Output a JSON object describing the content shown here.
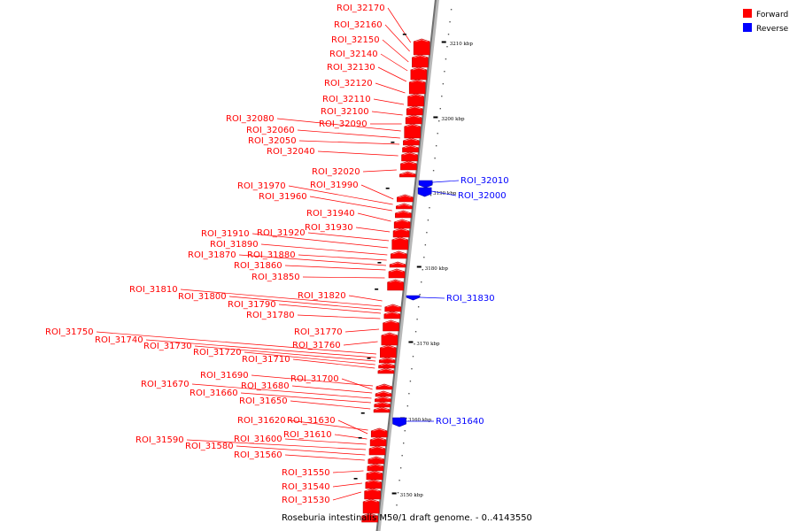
{
  "caption": "Roseburia intestinalis M50/1 draft genome. - 0..4143550",
  "legend": [
    {
      "label": "Forward",
      "color": "#ff0000"
    },
    {
      "label": "Reverse",
      "color": "#0000ff"
    }
  ],
  "ticks": [
    {
      "kbp": 3210,
      "label": "3210 kbp"
    },
    {
      "kbp": 3200,
      "label": "3200 kbp"
    },
    {
      "kbp": 3190,
      "label": "3190 kbp"
    },
    {
      "kbp": 3180,
      "label": "3180 kbp"
    },
    {
      "kbp": 3170,
      "label": "3170 kbp"
    },
    {
      "kbp": 3160,
      "label": "3160 kbp"
    },
    {
      "kbp": 3150,
      "label": "3150 kbp"
    }
  ],
  "features": [
    {
      "name": "ROI_32170",
      "strand": "forward"
    },
    {
      "name": "ROI_32160",
      "strand": "forward"
    },
    {
      "name": "ROI_32150",
      "strand": "forward"
    },
    {
      "name": "ROI_32140",
      "strand": "forward"
    },
    {
      "name": "ROI_32130",
      "strand": "forward"
    },
    {
      "name": "ROI_32120",
      "strand": "forward"
    },
    {
      "name": "ROI_32110",
      "strand": "forward"
    },
    {
      "name": "ROI_32100",
      "strand": "forward"
    },
    {
      "name": "ROI_32090",
      "strand": "forward"
    },
    {
      "name": "ROI_32080",
      "strand": "forward"
    },
    {
      "name": "ROI_32060",
      "strand": "forward"
    },
    {
      "name": "ROI_32050",
      "strand": "forward"
    },
    {
      "name": "ROI_32040",
      "strand": "forward"
    },
    {
      "name": "ROI_32020",
      "strand": "forward"
    },
    {
      "name": "ROI_32010",
      "strand": "reverse"
    },
    {
      "name": "ROI_32000",
      "strand": "reverse"
    },
    {
      "name": "ROI_31990",
      "strand": "forward"
    },
    {
      "name": "ROI_31970",
      "strand": "forward"
    },
    {
      "name": "ROI_31960",
      "strand": "forward"
    },
    {
      "name": "ROI_31940",
      "strand": "forward"
    },
    {
      "name": "ROI_31930",
      "strand": "forward"
    },
    {
      "name": "ROI_31920",
      "strand": "forward"
    },
    {
      "name": "ROI_31910",
      "strand": "forward"
    },
    {
      "name": "ROI_31890",
      "strand": "forward"
    },
    {
      "name": "ROI_31880",
      "strand": "forward"
    },
    {
      "name": "ROI_31870",
      "strand": "forward"
    },
    {
      "name": "ROI_31860",
      "strand": "forward"
    },
    {
      "name": "ROI_31850",
      "strand": "forward"
    },
    {
      "name": "ROI_31830",
      "strand": "reverse"
    },
    {
      "name": "ROI_31820",
      "strand": "forward"
    },
    {
      "name": "ROI_31810",
      "strand": "forward"
    },
    {
      "name": "ROI_31800",
      "strand": "forward"
    },
    {
      "name": "ROI_31790",
      "strand": "forward"
    },
    {
      "name": "ROI_31780",
      "strand": "forward"
    },
    {
      "name": "ROI_31770",
      "strand": "forward"
    },
    {
      "name": "ROI_31760",
      "strand": "forward"
    },
    {
      "name": "ROI_31750",
      "strand": "forward"
    },
    {
      "name": "ROI_31740",
      "strand": "forward"
    },
    {
      "name": "ROI_31730",
      "strand": "forward"
    },
    {
      "name": "ROI_31720",
      "strand": "forward"
    },
    {
      "name": "ROI_31710",
      "strand": "forward"
    },
    {
      "name": "ROI_31700",
      "strand": "forward"
    },
    {
      "name": "ROI_31690",
      "strand": "forward"
    },
    {
      "name": "ROI_31680",
      "strand": "forward"
    },
    {
      "name": "ROI_31670",
      "strand": "forward"
    },
    {
      "name": "ROI_31660",
      "strand": "forward"
    },
    {
      "name": "ROI_31650",
      "strand": "forward"
    },
    {
      "name": "ROI_31640",
      "strand": "reverse"
    },
    {
      "name": "ROI_31630",
      "strand": "forward"
    },
    {
      "name": "ROI_31620",
      "strand": "forward"
    },
    {
      "name": "ROI_31610",
      "strand": "forward"
    },
    {
      "name": "ROI_31600",
      "strand": "forward"
    },
    {
      "name": "ROI_31590",
      "strand": "forward"
    },
    {
      "name": "ROI_31580",
      "strand": "forward"
    },
    {
      "name": "ROI_31560",
      "strand": "forward"
    },
    {
      "name": "ROI_31550",
      "strand": "forward"
    },
    {
      "name": "ROI_31540",
      "strand": "forward"
    },
    {
      "name": "ROI_31530",
      "strand": "forward"
    }
  ]
}
